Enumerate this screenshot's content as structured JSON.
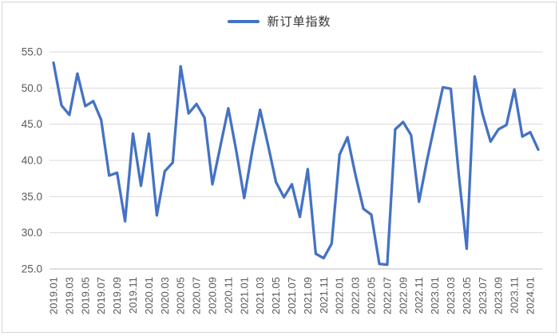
{
  "legend": {
    "label": "新订单指数"
  },
  "colors": {
    "series": "#4472C4",
    "gridline": "#D9D9D9",
    "axis_line": "#BFBFBF",
    "tick_text": "#595959",
    "legend_text": "#353535",
    "background": "#FFFFFF"
  },
  "chart_data": {
    "type": "line",
    "title": "",
    "xlabel": "",
    "ylabel": "",
    "legend_position": "top-center",
    "grid": "horizontal",
    "ylim": [
      25,
      55
    ],
    "y_ticks": [
      "55.0",
      "50.0",
      "45.0",
      "40.0",
      "35.0",
      "30.0",
      "25.0"
    ],
    "x_tick_step": 2,
    "x": [
      "2019.01",
      "2019.02",
      "2019.03",
      "2019.04",
      "2019.05",
      "2019.06",
      "2019.07",
      "2019.08",
      "2019.09",
      "2019.10",
      "2019.11",
      "2019.12",
      "2020.01",
      "2020.02",
      "2020.03",
      "2020.04",
      "2020.05",
      "2020.06",
      "2020.07",
      "2020.08",
      "2020.09",
      "2020.10",
      "2020.11",
      "2020.12",
      "2021.01",
      "2021.02",
      "2021.03",
      "2021.04",
      "2021.05",
      "2021.06",
      "2021.07",
      "2021.08",
      "2021.09",
      "2021.10",
      "2021.11",
      "2021.12",
      "2022.01",
      "2022.02",
      "2022.03",
      "2022.04",
      "2022.05",
      "2022.06",
      "2022.07",
      "2022.08",
      "2022.09",
      "2022.10",
      "2022.11",
      "2022.12",
      "2023.01",
      "2023.02",
      "2023.03",
      "2023.04",
      "2023.05",
      "2023.06",
      "2023.07",
      "2023.08",
      "2023.09",
      "2023.10",
      "2023.11",
      "2023.12",
      "2024.01",
      "2024.02"
    ],
    "series": [
      {
        "name": "新订单指数",
        "color": "#4472C4",
        "values": [
          53.5,
          47.6,
          46.3,
          52.0,
          47.5,
          48.2,
          45.6,
          37.9,
          38.3,
          31.6,
          43.7,
          36.5,
          43.7,
          32.4,
          38.5,
          39.7,
          53.0,
          46.5,
          47.8,
          45.9,
          36.7,
          42.0,
          47.2,
          41.3,
          34.8,
          41.3,
          47.0,
          42.1,
          37.0,
          34.9,
          36.7,
          32.2,
          38.8,
          27.1,
          26.5,
          28.5,
          40.8,
          43.2,
          38.0,
          33.3,
          32.5,
          25.7,
          25.6,
          44.3,
          45.3,
          43.5,
          34.3,
          40.0,
          45.1,
          50.1,
          49.9,
          38.0,
          27.8,
          51.6,
          46.4,
          42.6,
          44.3,
          44.9,
          49.8,
          43.3,
          43.9,
          41.5
        ]
      }
    ]
  }
}
